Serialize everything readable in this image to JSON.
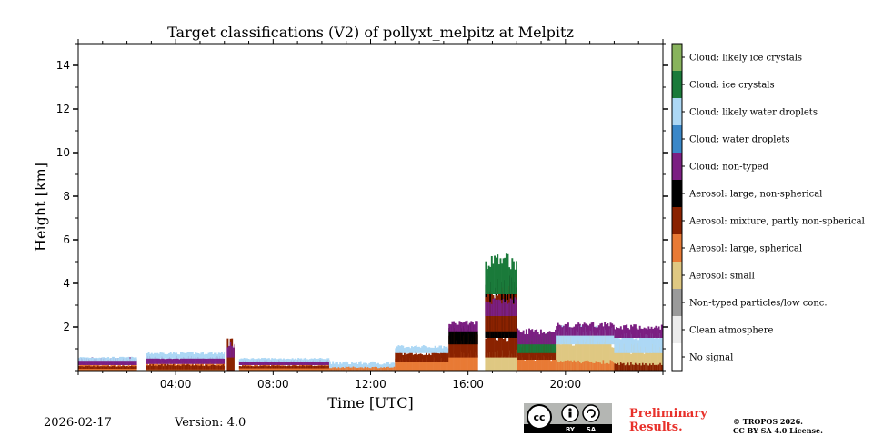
{
  "chart_data": {
    "type": "heatmap",
    "title": "Target classifications (V2) of pollyxt_melpitz at Melpitz",
    "xlabel": "Time [UTC]",
    "ylabel": "Height [km]",
    "xlim_hours": [
      0,
      24
    ],
    "ylim_km": [
      0,
      15
    ],
    "x_ticks": [
      {
        "hour": 4,
        "label": "04:00"
      },
      {
        "hour": 8,
        "label": "08:00"
      },
      {
        "hour": 12,
        "label": "12:00"
      },
      {
        "hour": 16,
        "label": "16:00"
      },
      {
        "hour": 20,
        "label": "20:00"
      }
    ],
    "y_ticks": [
      {
        "km": 2,
        "label": "2"
      },
      {
        "km": 4,
        "label": "4"
      },
      {
        "km": 6,
        "label": "6"
      },
      {
        "km": 8,
        "label": "8"
      },
      {
        "km": 10,
        "label": "10"
      },
      {
        "km": 12,
        "label": "12"
      },
      {
        "km": 14,
        "label": "14"
      }
    ],
    "classes": [
      {
        "code": 11,
        "label": "Cloud: likely ice crystals",
        "color": "#88b35d"
      },
      {
        "code": 10,
        "label": "Cloud: ice crystals",
        "color": "#1a7a3a"
      },
      {
        "code": 9,
        "label": "Cloud: likely water droplets",
        "color": "#add8f5"
      },
      {
        "code": 8,
        "label": "Cloud: water droplets",
        "color": "#3a87c8"
      },
      {
        "code": 7,
        "label": "Cloud: non-typed",
        "color": "#7b1f82"
      },
      {
        "code": 6,
        "label": "Aerosol: large, non-spherical",
        "color": "#000000"
      },
      {
        "code": 5,
        "label": "Aerosol: mixture, partly non-spherical",
        "color": "#8a2200"
      },
      {
        "code": 4,
        "label": "Aerosol: large, spherical",
        "color": "#e87a35"
      },
      {
        "code": 3,
        "label": "Aerosol: small",
        "color": "#dfc882"
      },
      {
        "code": 2,
        "label": "Non-typed particles/low conc.",
        "color": "#9a9a9a"
      },
      {
        "code": 1,
        "label": "Clean atmosphere",
        "color": "#ececec"
      },
      {
        "code": 0,
        "label": "No signal",
        "color": "#ffffff"
      }
    ],
    "regions": [
      {
        "t0": 0.0,
        "t1": 2.4,
        "layers": [
          [
            0,
            0.25,
            "Aerosol: large, spherical"
          ],
          [
            0.08,
            0.2,
            "Aerosol: mixture, partly non-spherical"
          ],
          [
            0.25,
            0.55,
            "Cloud: non-typed"
          ],
          [
            0.45,
            0.6,
            "Cloud: likely water droplets"
          ]
        ]
      },
      {
        "t0": 2.8,
        "t1": 6.0,
        "layers": [
          [
            0,
            0.3,
            "Aerosol: large, spherical"
          ],
          [
            0.05,
            0.25,
            "Aerosol: mixture, partly non-spherical"
          ],
          [
            0.3,
            0.6,
            "Cloud: non-typed"
          ],
          [
            0.55,
            0.8,
            "Cloud: likely water droplets"
          ]
        ]
      },
      {
        "t0": 6.1,
        "t1": 6.4,
        "layers": [
          [
            0,
            1.2,
            "Aerosol: mixture, partly non-spherical"
          ],
          [
            0.6,
            1.2,
            "Cloud: non-typed"
          ]
        ]
      },
      {
        "t0": 6.6,
        "t1": 10.3,
        "layers": [
          [
            0,
            0.25,
            "Aerosol: large, spherical"
          ],
          [
            0.1,
            0.22,
            "Aerosol: mixture, partly non-spherical"
          ],
          [
            0.25,
            0.45,
            "Cloud: non-typed"
          ],
          [
            0.4,
            0.55,
            "Cloud: likely water droplets"
          ]
        ]
      },
      {
        "t0": 10.3,
        "t1": 13.5,
        "layers": [
          [
            0,
            0.35,
            "Cloud: likely water droplets"
          ],
          [
            0,
            0.15,
            "Aerosol: large, spherical"
          ]
        ]
      },
      {
        "t0": 13.0,
        "t1": 15.2,
        "layers": [
          [
            0,
            0.5,
            "Aerosol: large, spherical"
          ],
          [
            0.4,
            0.8,
            "Aerosol: mixture, partly non-spherical"
          ],
          [
            0.8,
            1.1,
            "Cloud: likely water droplets"
          ]
        ]
      },
      {
        "t0": 15.2,
        "t1": 16.4,
        "layers": [
          [
            0,
            0.8,
            "Aerosol: large, spherical"
          ],
          [
            0.6,
            1.6,
            "Aerosol: mixture, partly non-spherical"
          ],
          [
            1.2,
            2.0,
            "Aerosol: large, non-spherical"
          ],
          [
            1.8,
            2.2,
            "Cloud: non-typed"
          ]
        ]
      },
      {
        "t0": 16.7,
        "t1": 18.0,
        "layers": [
          [
            0,
            0.8,
            "Aerosol: small"
          ],
          [
            0.6,
            1.6,
            "Aerosol: mixture, partly non-spherical"
          ],
          [
            1.5,
            3.8,
            "Aerosol: large, non-spherical"
          ],
          [
            1.8,
            3.5,
            "Aerosol: mixture, partly non-spherical"
          ],
          [
            3.5,
            5.0,
            "Cloud: ice crystals"
          ],
          [
            2.5,
            3.2,
            "Cloud: non-typed"
          ]
        ]
      },
      {
        "t0": 18.0,
        "t1": 19.6,
        "layers": [
          [
            0,
            0.6,
            "Aerosol: large, spherical"
          ],
          [
            0.5,
            1.2,
            "Aerosol: mixture, partly non-spherical"
          ],
          [
            0.8,
            1.6,
            "Cloud: ice crystals"
          ],
          [
            1.2,
            1.8,
            "Cloud: non-typed"
          ]
        ]
      },
      {
        "t0": 19.6,
        "t1": 22.0,
        "layers": [
          [
            0,
            1.4,
            "Aerosol: small"
          ],
          [
            0,
            0.4,
            "Aerosol: large, spherical"
          ],
          [
            1.2,
            1.9,
            "Cloud: likely water droplets"
          ],
          [
            1.6,
            2.1,
            "Cloud: non-typed"
          ]
        ]
      },
      {
        "t0": 22.0,
        "t1": 24.0,
        "layers": [
          [
            0,
            1.0,
            "Aerosol: small"
          ],
          [
            0,
            0.3,
            "Aerosol: mixture, partly non-spherical"
          ],
          [
            0.8,
            1.6,
            "Cloud: likely water droplets"
          ],
          [
            1.5,
            2.0,
            "Cloud: non-typed"
          ]
        ]
      }
    ]
  },
  "footer": {
    "date": "2026-02-17",
    "version": "Version: 4.0",
    "preliminary": [
      "Preliminary",
      "Results."
    ],
    "license": [
      "© TROPOS 2026.",
      "CC BY SA 4.0 License."
    ],
    "badge": {
      "cc": "cc",
      "by": "BY",
      "sa": "SA"
    }
  }
}
